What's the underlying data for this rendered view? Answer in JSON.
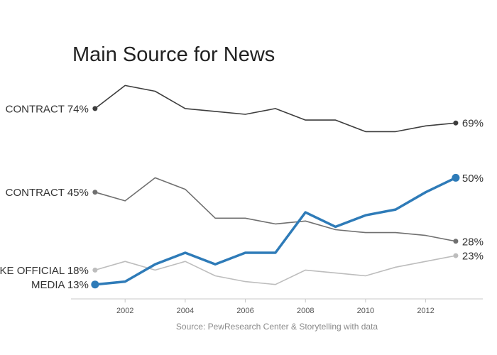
{
  "chart_data": {
    "type": "line",
    "title": "Main Source for News",
    "source": "Source: PewResearch Center & Storytelling with data",
    "x": [
      2001,
      2002,
      2003,
      2004,
      2005,
      2006,
      2007,
      2008,
      2009,
      2010,
      2011,
      2012,
      2013
    ],
    "xticks": [
      2002,
      2004,
      2006,
      2008,
      2010,
      2012
    ],
    "xlim": [
      2000.2,
      2013.9
    ],
    "ylim": [
      8,
      88
    ],
    "series": [
      {
        "name": "CONTRACT",
        "start_label": "CONTRACT 74%",
        "end_label": "69%",
        "color": "#3d3d3d",
        "width": 1.6,
        "values": [
          74,
          82,
          80,
          74,
          73,
          72,
          74,
          70,
          70,
          66,
          66,
          68,
          69
        ]
      },
      {
        "name": "CONTRACT",
        "start_label": "CONTRACT 45%",
        "end_label": "28%",
        "color": "#707070",
        "width": 1.6,
        "values": [
          45,
          42,
          50,
          46,
          36,
          36,
          34,
          35,
          32,
          31,
          31,
          30,
          28
        ]
      },
      {
        "name": "KE OFFICIAL",
        "start_label": "KE OFFICIAL 18%",
        "end_label": "23%",
        "color": "#bdbdbd",
        "width": 1.6,
        "values": [
          18,
          21,
          18,
          21,
          16,
          14,
          13,
          18,
          17,
          16,
          19,
          21,
          23
        ]
      },
      {
        "name": "MEDIA",
        "start_label": "MEDIA 13%",
        "end_label": "50%",
        "color": "#2e7bb8",
        "width": 3.5,
        "values": [
          13,
          14,
          20,
          24,
          20,
          24,
          24,
          38,
          33,
          37,
          39,
          45,
          50
        ]
      }
    ]
  }
}
